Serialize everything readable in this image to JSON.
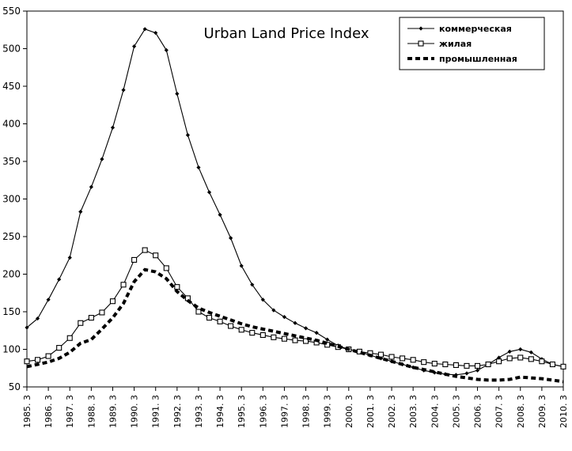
{
  "chart_data": {
    "type": "line",
    "title": "Urban Land Price Index",
    "xlabel": "",
    "ylabel": "",
    "ylim": [
      50,
      550
    ],
    "yticks": [
      50,
      100,
      150,
      200,
      250,
      300,
      350,
      400,
      450,
      500,
      550
    ],
    "grid": false,
    "legend_position": "top-right",
    "x": [
      "1985.3",
      "1985.9",
      "1986.3",
      "1986.9",
      "1987.3",
      "1987.9",
      "1988.3",
      "1988.9",
      "1989.3",
      "1989.9",
      "1990.3",
      "1990.9",
      "1991.3",
      "1991.9",
      "1992.3",
      "1992.9",
      "1993.3",
      "1993.9",
      "1994.3",
      "1994.9",
      "1995.3",
      "1995.9",
      "1996.3",
      "1996.9",
      "1997.3",
      "1997.9",
      "1998.3",
      "1998.9",
      "1999.3",
      "1999.9",
      "2000.3",
      "2000.9",
      "2001.3",
      "2001.9",
      "2002.3",
      "2002.9",
      "2003.3",
      "2003.9",
      "2004.3",
      "2004.9",
      "2005.3",
      "2005.9",
      "2006.3",
      "2006.9",
      "2007.3",
      "2007.9",
      "2008.3",
      "2008.9",
      "2009.3",
      "2009.9",
      "2010.3"
    ],
    "xtick_labels": [
      "1985. 3",
      "1986. 3",
      "1987. 3",
      "1988. 3",
      "1989. 3",
      "1990. 3",
      "1991. 3",
      "1992. 3",
      "1993. 3",
      "1994. 3",
      "1995. 3",
      "1996. 3",
      "1997. 3",
      "1998. 3",
      "1999. 3",
      "2000. 3",
      "2001. 3",
      "2002. 3",
      "2003. 3",
      "2004. 3",
      "2005. 3",
      "2006. 3",
      "2007. 3",
      "2008. 3",
      "2009. 3",
      "2010. 3"
    ],
    "series": [
      {
        "name": "коммерческая",
        "marker": "diamond",
        "color": "#000000",
        "values": [
          129,
          141,
          166,
          193,
          222,
          283,
          316,
          353,
          395,
          445,
          503,
          526,
          521,
          498,
          440,
          385,
          342,
          309,
          279,
          248,
          211,
          186,
          166,
          152,
          143,
          135,
          128,
          122,
          113,
          105,
          100,
          97,
          92,
          88,
          84,
          80,
          76,
          72,
          69,
          67,
          66,
          68,
          72,
          80,
          89,
          97,
          100,
          96,
          87,
          80,
          77
        ]
      },
      {
        "name": "жилая",
        "marker": "open-square",
        "color": "#000000",
        "values": [
          84,
          86,
          91,
          102,
          115,
          135,
          142,
          149,
          164,
          186,
          219,
          232,
          225,
          208,
          183,
          168,
          150,
          142,
          137,
          131,
          126,
          122,
          119,
          116,
          114,
          112,
          111,
          109,
          106,
          103,
          100,
          97,
          95,
          93,
          90,
          88,
          86,
          83,
          81,
          80,
          79,
          78,
          78,
          80,
          84,
          88,
          89,
          87,
          84,
          80,
          77
        ]
      },
      {
        "name": "промышленная",
        "marker": "dash",
        "color": "#000000",
        "values": [
          77,
          80,
          83,
          88,
          96,
          108,
          113,
          127,
          142,
          161,
          190,
          206,
          203,
          194,
          177,
          165,
          155,
          149,
          144,
          139,
          134,
          130,
          127,
          124,
          121,
          118,
          115,
          112,
          108,
          104,
          100,
          96,
          92,
          88,
          84,
          80,
          76,
          73,
          70,
          67,
          64,
          62,
          60,
          59,
          59,
          60,
          63,
          62,
          61,
          59,
          57
        ]
      }
    ]
  }
}
